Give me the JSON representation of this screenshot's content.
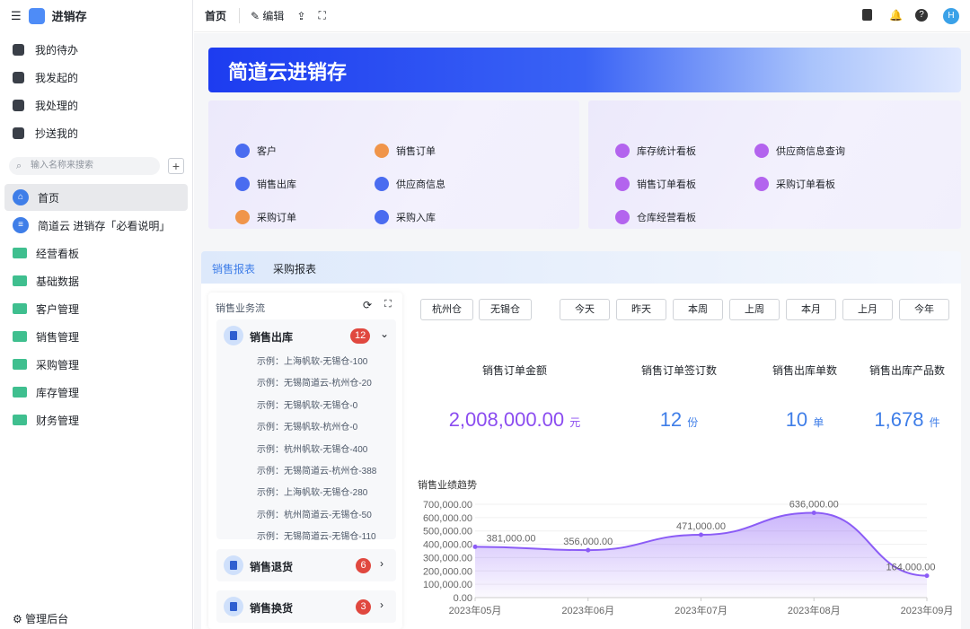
{
  "app": {
    "title": "进销存"
  },
  "sidebar": {
    "quick": [
      {
        "label": "我的待办",
        "icon": "bell-icon"
      },
      {
        "label": "我发起的",
        "icon": "play-icon"
      },
      {
        "label": "我处理的",
        "icon": "inbox-check-icon"
      },
      {
        "label": "抄送我的",
        "icon": "send-icon"
      }
    ],
    "search_placeholder": "输入名称来搜索",
    "menu": [
      {
        "label": "首页",
        "icon": "home-icon",
        "active": true
      },
      {
        "label": "简道云 进销存「必看说明」",
        "icon": "document-icon"
      },
      {
        "label": "经营看板",
        "icon": "folder-icon"
      },
      {
        "label": "基础数据",
        "icon": "folder-icon"
      },
      {
        "label": "客户管理",
        "icon": "folder-icon"
      },
      {
        "label": "销售管理",
        "icon": "folder-icon"
      },
      {
        "label": "采购管理",
        "icon": "folder-icon"
      },
      {
        "label": "库存管理",
        "icon": "folder-icon"
      },
      {
        "label": "财务管理",
        "icon": "folder-icon"
      }
    ],
    "admin": "管理后台"
  },
  "topbar": {
    "page": "首页",
    "edit": "编辑",
    "avatar": "H"
  },
  "banner": {
    "title": "简道云进销存"
  },
  "shortcuts_left": [
    {
      "label": "客户",
      "color": "#4a6cf0"
    },
    {
      "label": "销售订单",
      "color": "#f0954a"
    },
    {
      "label": "销售出库",
      "color": "#4a6cf0"
    },
    {
      "label": "供应商信息",
      "color": "#4a6cf0"
    },
    {
      "label": "采购订单",
      "color": "#f0954a"
    },
    {
      "label": "采购入库",
      "color": "#4a6cf0"
    }
  ],
  "shortcuts_right": [
    {
      "label": "库存统计看板",
      "color": "#b364ee"
    },
    {
      "label": "供应商信息查询",
      "color": "#b364ee"
    },
    {
      "label": "销售订单看板",
      "color": "#b364ee"
    },
    {
      "label": "采购订单看板",
      "color": "#b364ee"
    },
    {
      "label": "仓库经营看板",
      "color": "#b364ee"
    }
  ],
  "tabs": [
    {
      "label": "销售报表",
      "active": true
    },
    {
      "label": "采购报表"
    }
  ],
  "flow": {
    "title": "销售业务流",
    "groups": [
      {
        "label": "销售出库",
        "count": "12",
        "expanded": true,
        "items": [
          "示例：上海帆软-无锡仓-100",
          "示例：无锡简道云-杭州仓-20",
          "示例：无锡帆软-无锡仓-0",
          "示例：无锡帆软-杭州仓-0",
          "示例：杭州帆软-无锡仓-400",
          "示例：无锡简道云-杭州仓-388",
          "示例：上海帆软-无锡仓-280",
          "示例：杭州简道云-无锡仓-50",
          "示例：无锡简道云-无锡仓-110"
        ]
      },
      {
        "label": "销售退货",
        "count": "6"
      },
      {
        "label": "销售换货",
        "count": "3"
      }
    ]
  },
  "warehouses": [
    "杭州仓",
    "无锡仓"
  ],
  "periods": [
    "今天",
    "昨天",
    "本周",
    "上周",
    "本月",
    "上月",
    "今年"
  ],
  "stats": [
    {
      "label": "销售订单金额",
      "value": "2,008,000.00",
      "unit": "元",
      "color": "#8b4cf0"
    },
    {
      "label": "销售订单签订数",
      "value": "12",
      "unit": "份",
      "color": "#3f7ee8"
    },
    {
      "label": "销售出库单数",
      "value": "10",
      "unit": "单",
      "color": "#3f7ee8"
    },
    {
      "label": "销售出库产品数",
      "value": "1,678",
      "unit": "件",
      "color": "#3f7ee8"
    }
  ],
  "chart_data": {
    "type": "area",
    "title": "销售业绩趋势",
    "categories": [
      "2023年05月",
      "2023年06月",
      "2023年07月",
      "2023年08月",
      "2023年09月"
    ],
    "values": [
      381000,
      356000,
      471000,
      636000,
      164000
    ],
    "data_labels": [
      "381,000.00",
      "356,000.00",
      "471,000.00",
      "636,000.00",
      "164,000.00"
    ],
    "ylim": [
      0,
      700000
    ],
    "yticks": [
      "0.00",
      "100,000.00",
      "200,000.00",
      "300,000.00",
      "400,000.00",
      "500,000.00",
      "600,000.00",
      "700,000.00"
    ],
    "color": "#8b5cf6",
    "grid": true
  }
}
